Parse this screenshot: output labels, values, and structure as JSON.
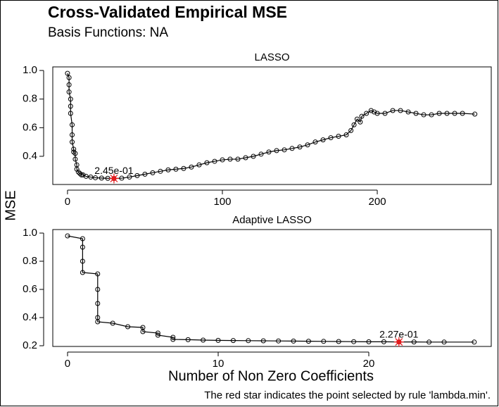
{
  "title": "Cross-Validated Empirical MSE",
  "subtitle": "Basis Functions: NA",
  "y_label": "MSE",
  "x_label": "Number of Non Zero Coefficients",
  "caption": "The red star indicates the point selected by rule 'lambda.min'.",
  "chart_data": [
    {
      "type": "line",
      "title": "LASSO",
      "color": "#000000",
      "x": [
        0,
        1,
        1,
        1,
        2,
        2,
        2,
        3,
        3,
        3,
        4,
        4,
        5,
        5,
        6,
        6,
        7,
        8,
        9,
        10,
        12,
        15,
        18,
        22,
        26,
        30,
        35,
        40,
        45,
        50,
        55,
        60,
        65,
        70,
        75,
        80,
        85,
        90,
        95,
        100,
        105,
        110,
        115,
        120,
        125,
        130,
        135,
        140,
        145,
        150,
        155,
        160,
        165,
        170,
        175,
        180,
        183,
        185,
        187,
        189,
        190,
        193,
        196,
        198,
        200,
        205,
        210,
        215,
        220,
        225,
        230,
        235,
        240,
        245,
        250,
        255,
        263
      ],
      "values": [
        0.98,
        0.95,
        0.9,
        0.85,
        0.8,
        0.75,
        0.7,
        0.62,
        0.55,
        0.5,
        0.45,
        0.43,
        0.42,
        0.38,
        0.34,
        0.31,
        0.29,
        0.28,
        0.27,
        0.27,
        0.26,
        0.255,
        0.25,
        0.248,
        0.246,
        0.245,
        0.247,
        0.255,
        0.265,
        0.275,
        0.285,
        0.295,
        0.305,
        0.31,
        0.315,
        0.325,
        0.34,
        0.355,
        0.365,
        0.375,
        0.38,
        0.38,
        0.39,
        0.4,
        0.415,
        0.43,
        0.44,
        0.445,
        0.455,
        0.465,
        0.48,
        0.5,
        0.515,
        0.53,
        0.54,
        0.55,
        0.58,
        0.62,
        0.66,
        0.64,
        0.68,
        0.7,
        0.72,
        0.71,
        0.7,
        0.7,
        0.72,
        0.72,
        0.71,
        0.7,
        0.69,
        0.69,
        0.7,
        0.7,
        0.7,
        0.7,
        0.695
      ],
      "xlim": [
        -9.5,
        273.6
      ],
      "ylim": [
        0.203,
        1.025
      ],
      "xticks": [
        0,
        100,
        200
      ],
      "yticks": [
        0.4,
        0.6,
        0.8,
        {
          "value": 1,
          "label": "1.0"
        }
      ],
      "annotation": {
        "x": 30,
        "y": 0.245,
        "label": "2.45e-01",
        "color": "#e41a1c"
      }
    },
    {
      "type": "line",
      "title": "Adaptive LASSO",
      "color": "#000000",
      "x": [
        0,
        1,
        1,
        1,
        1,
        2,
        2,
        2,
        2,
        2,
        3,
        4,
        5,
        5,
        6,
        6,
        7,
        7,
        8,
        9,
        10,
        11,
        12,
        13,
        14,
        15,
        16,
        17,
        18,
        19,
        20,
        21,
        22,
        23,
        24,
        25,
        27
      ],
      "values": [
        0.98,
        0.96,
        0.9,
        0.8,
        0.72,
        0.71,
        0.6,
        0.5,
        0.4,
        0.37,
        0.36,
        0.335,
        0.33,
        0.3,
        0.29,
        0.275,
        0.26,
        0.245,
        0.243,
        0.24,
        0.238,
        0.237,
        0.236,
        0.235,
        0.234,
        0.233,
        0.232,
        0.231,
        0.23,
        0.229,
        0.228,
        0.228,
        0.227,
        0.227,
        0.226,
        0.226,
        0.226
      ],
      "xlim": [
        -0.98,
        28.13
      ],
      "ylim": [
        0.195,
        1.025
      ],
      "xticks": [
        0,
        10,
        20
      ],
      "yticks": [
        0.2,
        0.4,
        0.6,
        0.8,
        {
          "value": 1,
          "label": "1.0"
        }
      ],
      "annotation": {
        "x": 22,
        "y": 0.227,
        "label": "2.27e-01",
        "color": "#e41a1c"
      }
    }
  ]
}
